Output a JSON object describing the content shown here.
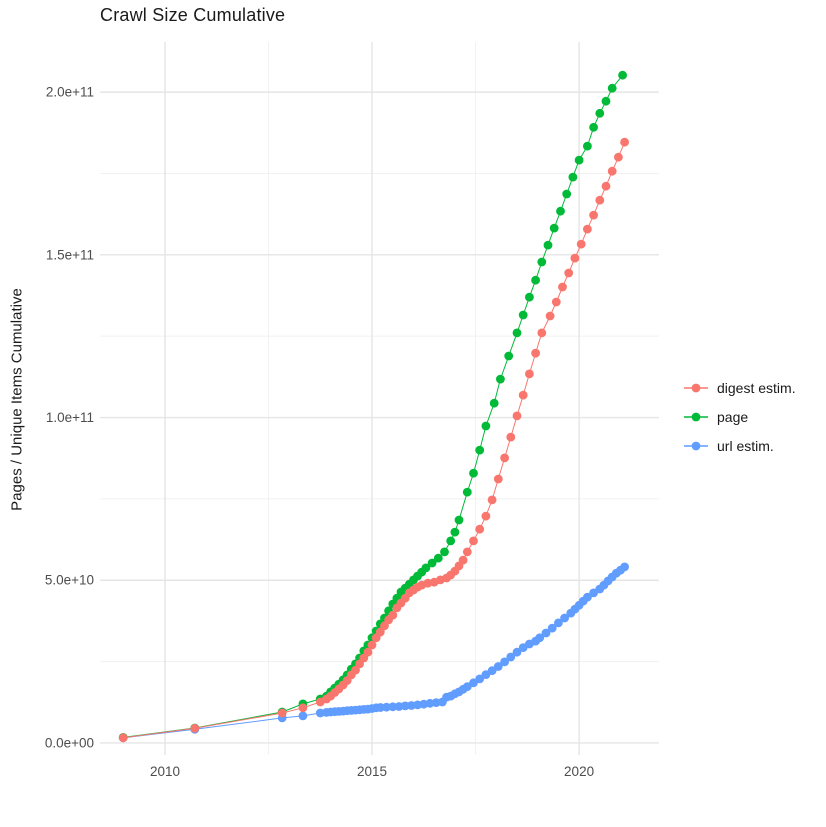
{
  "chart_data": {
    "type": "scatter",
    "title": "Crawl Size Cumulative",
    "xlabel": "",
    "ylabel": "Pages / Unique Items Cumulative",
    "xlim": [
      2008.43,
      2021.93
    ],
    "ylim": [
      -3700000000.0,
      215400000000.0
    ],
    "grid": true,
    "legend_position": "right",
    "point_radius": 4.4,
    "x_ticks": {
      "values": [
        2010,
        2015,
        2020
      ],
      "labels": [
        "2010",
        "2015",
        "2020"
      ],
      "minor": [
        2012.5,
        2017.5
      ]
    },
    "y_ticks": {
      "values": [
        0,
        50000000000.0,
        100000000000.0,
        150000000000.0,
        200000000000.0
      ],
      "labels": [
        "0.0e+00",
        "5.0e+10",
        "1.0e+11",
        "1.5e+11",
        "2.0e+11"
      ],
      "minor": [
        25000000000.0,
        75000000000.0,
        125000000000.0,
        175000000000.0
      ]
    },
    "value_unit_multiplier": 1000000000.0,
    "series": [
      {
        "name": "url estim.",
        "color": "#619CFF",
        "points": [
          [
            2008.99,
            1.6
          ],
          [
            2010.72,
            4.2
          ],
          [
            2012.83,
            7.7
          ],
          [
            2013.33,
            8.3
          ],
          [
            2013.75,
            9.2
          ],
          [
            2013.9,
            9.4
          ],
          [
            2014.0,
            9.5
          ],
          [
            2014.1,
            9.6
          ],
          [
            2014.2,
            9.7
          ],
          [
            2014.3,
            9.8
          ],
          [
            2014.4,
            9.9
          ],
          [
            2014.5,
            10.0
          ],
          [
            2014.6,
            10.1
          ],
          [
            2014.7,
            10.2
          ],
          [
            2014.8,
            10.3
          ],
          [
            2014.9,
            10.4
          ],
          [
            2015.0,
            10.6
          ],
          [
            2015.1,
            10.8
          ],
          [
            2015.2,
            10.9
          ],
          [
            2015.35,
            11.0
          ],
          [
            2015.5,
            11.1
          ],
          [
            2015.65,
            11.2
          ],
          [
            2015.8,
            11.4
          ],
          [
            2015.95,
            11.5
          ],
          [
            2016.1,
            11.7
          ],
          [
            2016.25,
            11.9
          ],
          [
            2016.4,
            12.2
          ],
          [
            2016.55,
            12.4
          ],
          [
            2016.7,
            12.6
          ],
          [
            2016.8,
            14.1
          ],
          [
            2016.9,
            14.4
          ],
          [
            2017.0,
            15.1
          ],
          [
            2017.1,
            15.7
          ],
          [
            2017.2,
            16.5
          ],
          [
            2017.3,
            17.3
          ],
          [
            2017.45,
            18.5
          ],
          [
            2017.6,
            19.7
          ],
          [
            2017.75,
            21.0
          ],
          [
            2017.9,
            22.2
          ],
          [
            2018.05,
            23.5
          ],
          [
            2018.2,
            24.9
          ],
          [
            2018.35,
            26.4
          ],
          [
            2018.5,
            27.9
          ],
          [
            2018.65,
            29.3
          ],
          [
            2018.8,
            30.4
          ],
          [
            2018.95,
            31.3
          ],
          [
            2019.05,
            32.3
          ],
          [
            2019.2,
            33.8
          ],
          [
            2019.35,
            35.3
          ],
          [
            2019.5,
            36.9
          ],
          [
            2019.65,
            38.4
          ],
          [
            2019.8,
            39.9
          ],
          [
            2019.9,
            41.1
          ],
          [
            2020.0,
            42.3
          ],
          [
            2020.1,
            43.6
          ],
          [
            2020.2,
            44.8
          ],
          [
            2020.35,
            46.1
          ],
          [
            2020.5,
            47.3
          ],
          [
            2020.6,
            48.5
          ],
          [
            2020.7,
            49.8
          ],
          [
            2020.8,
            51.0
          ],
          [
            2020.9,
            52.2
          ],
          [
            2021.0,
            53.1
          ],
          [
            2021.1,
            54.1
          ]
        ]
      },
      {
        "name": "page",
        "color": "#00BA38",
        "points": [
          [
            2008.99,
            1.7
          ],
          [
            2010.72,
            4.6
          ],
          [
            2012.83,
            9.5
          ],
          [
            2013.33,
            12.0
          ],
          [
            2013.75,
            13.5
          ],
          [
            2013.9,
            14.4
          ],
          [
            2014.0,
            15.7
          ],
          [
            2014.1,
            16.9
          ],
          [
            2014.2,
            18.1
          ],
          [
            2014.3,
            19.4
          ],
          [
            2014.4,
            20.9
          ],
          [
            2014.5,
            22.7
          ],
          [
            2014.6,
            24.3
          ],
          [
            2014.7,
            26.1
          ],
          [
            2014.8,
            28.3
          ],
          [
            2014.9,
            30.1
          ],
          [
            2015.0,
            32.3
          ],
          [
            2015.1,
            34.4
          ],
          [
            2015.2,
            36.6
          ],
          [
            2015.3,
            38.4
          ],
          [
            2015.4,
            40.6
          ],
          [
            2015.5,
            42.7
          ],
          [
            2015.6,
            44.5
          ],
          [
            2015.7,
            46.4
          ],
          [
            2015.8,
            47.6
          ],
          [
            2015.9,
            48.8
          ],
          [
            2016.0,
            50.1
          ],
          [
            2016.1,
            51.3
          ],
          [
            2016.2,
            52.5
          ],
          [
            2016.3,
            53.8
          ],
          [
            2016.45,
            55.3
          ],
          [
            2016.6,
            56.8
          ],
          [
            2016.75,
            58.7
          ],
          [
            2016.9,
            62.1
          ],
          [
            2017.0,
            64.8
          ],
          [
            2017.1,
            68.5
          ],
          [
            2017.3,
            77.1
          ],
          [
            2017.45,
            82.9
          ],
          [
            2017.6,
            90.0
          ],
          [
            2017.75,
            97.4
          ],
          [
            2017.95,
            104.4
          ],
          [
            2018.1,
            111.8
          ],
          [
            2018.3,
            118.9
          ],
          [
            2018.5,
            126.0
          ],
          [
            2018.65,
            131.5
          ],
          [
            2018.8,
            137.0
          ],
          [
            2018.95,
            142.2
          ],
          [
            2019.1,
            147.8
          ],
          [
            2019.25,
            153.0
          ],
          [
            2019.4,
            158.2
          ],
          [
            2019.55,
            163.4
          ],
          [
            2019.7,
            168.7
          ],
          [
            2019.85,
            173.9
          ],
          [
            2020.0,
            179.1
          ],
          [
            2020.2,
            183.4
          ],
          [
            2020.35,
            189.2
          ],
          [
            2020.5,
            193.5
          ],
          [
            2020.65,
            197.2
          ],
          [
            2020.8,
            201.2
          ],
          [
            2021.05,
            205.2
          ]
        ]
      },
      {
        "name": "digest estim.",
        "color": "#F8766D",
        "points": [
          [
            2008.99,
            1.6
          ],
          [
            2010.72,
            4.5
          ],
          [
            2012.83,
            9.2
          ],
          [
            2013.33,
            10.8
          ],
          [
            2013.75,
            12.6
          ],
          [
            2013.9,
            13.5
          ],
          [
            2014.0,
            14.4
          ],
          [
            2014.1,
            15.5
          ],
          [
            2014.2,
            16.6
          ],
          [
            2014.3,
            17.8
          ],
          [
            2014.4,
            19.2
          ],
          [
            2014.5,
            20.9
          ],
          [
            2014.6,
            22.4
          ],
          [
            2014.7,
            24.3
          ],
          [
            2014.8,
            26.1
          ],
          [
            2014.9,
            27.9
          ],
          [
            2015.0,
            30.1
          ],
          [
            2015.1,
            32.3
          ],
          [
            2015.2,
            34.1
          ],
          [
            2015.3,
            36.0
          ],
          [
            2015.4,
            37.8
          ],
          [
            2015.5,
            39.3
          ],
          [
            2015.6,
            41.5
          ],
          [
            2015.7,
            43.0
          ],
          [
            2015.8,
            44.5
          ],
          [
            2015.9,
            46.1
          ],
          [
            2016.0,
            47.0
          ],
          [
            2016.1,
            47.9
          ],
          [
            2016.2,
            48.5
          ],
          [
            2016.35,
            49.1
          ],
          [
            2016.5,
            49.4
          ],
          [
            2016.65,
            50.1
          ],
          [
            2016.8,
            50.7
          ],
          [
            2016.9,
            51.6
          ],
          [
            2017.0,
            52.8
          ],
          [
            2017.1,
            54.4
          ],
          [
            2017.2,
            56.2
          ],
          [
            2017.3,
            58.7
          ],
          [
            2017.45,
            62.1
          ],
          [
            2017.6,
            65.7
          ],
          [
            2017.75,
            69.7
          ],
          [
            2017.9,
            74.7
          ],
          [
            2018.05,
            81.1
          ],
          [
            2018.2,
            87.6
          ],
          [
            2018.35,
            94.0
          ],
          [
            2018.5,
            100.5
          ],
          [
            2018.65,
            106.9
          ],
          [
            2018.8,
            113.4
          ],
          [
            2018.95,
            119.8
          ],
          [
            2019.1,
            126.0
          ],
          [
            2019.3,
            131.2
          ],
          [
            2019.45,
            135.5
          ],
          [
            2019.6,
            140.1
          ],
          [
            2019.75,
            144.4
          ],
          [
            2019.9,
            149.0
          ],
          [
            2020.05,
            153.3
          ],
          [
            2020.2,
            157.9
          ],
          [
            2020.35,
            162.2
          ],
          [
            2020.5,
            166.8
          ],
          [
            2020.65,
            171.1
          ],
          [
            2020.8,
            175.7
          ],
          [
            2020.95,
            180.0
          ],
          [
            2021.1,
            184.6
          ]
        ]
      }
    ],
    "legend_order": [
      2,
      1,
      0
    ]
  },
  "colors": {
    "grid_major": "#e5e5e5",
    "grid_minor": "#f1f1f1",
    "tick_label": "#4d4d4d",
    "text": "#1a1a1a",
    "background": "#ffffff"
  }
}
